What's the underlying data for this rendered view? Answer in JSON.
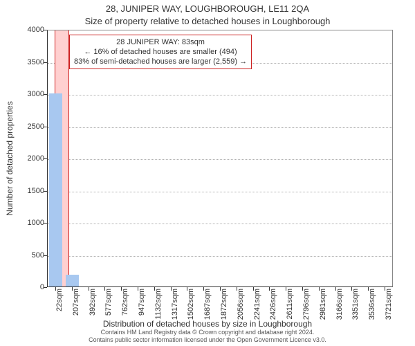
{
  "chart": {
    "type": "histogram",
    "title_line1": "28, JUNIPER WAY, LOUGHBOROUGH, LE11 2QA",
    "title_line2": "Size of property relative to detached houses in Loughborough",
    "title_fontsize": 13,
    "y_axis": {
      "label": "Number of detached properties",
      "ticks": [
        0,
        500,
        1000,
        1500,
        2000,
        2500,
        3000,
        3500,
        4000
      ],
      "lim": [
        0,
        4000
      ],
      "label_fontsize": 12,
      "tick_fontsize": 11
    },
    "x_axis": {
      "label": "Distribution of detached houses by size in Loughborough",
      "tick_labels": [
        "22sqm",
        "207sqm",
        "392sqm",
        "577sqm",
        "762sqm",
        "947sqm",
        "1132sqm",
        "1317sqm",
        "1502sqm",
        "1687sqm",
        "1872sqm",
        "2056sqm",
        "2241sqm",
        "2426sqm",
        "2611sqm",
        "2796sqm",
        "2981sqm",
        "3166sqm",
        "3351sqm",
        "3536sqm",
        "3721sqm"
      ],
      "label_fontsize": 12,
      "tick_fontsize": 11
    },
    "highlight": {
      "center_index": 0.33,
      "color": "#ffd0d0",
      "border_color": "#cc2020"
    },
    "bars": {
      "values": [
        3000,
        180,
        0,
        0,
        0,
        0,
        0,
        0,
        0,
        0,
        0,
        0,
        0,
        0,
        0,
        0,
        0,
        0,
        0,
        0,
        0
      ],
      "fill_color": "#a8c8f0",
      "width_frac": 0.8
    },
    "grid": {
      "color": "#b0b0b0",
      "style": "dotted"
    },
    "background_color": "#ffffff",
    "plot_border_color": "#888888",
    "annotation": {
      "lines": [
        "28 JUNIPER WAY: 83sqm",
        "← 16% of detached houses are smaller (494)",
        "83% of semi-detached houses are larger (2,559) →"
      ],
      "border_color": "#cc2020",
      "fontsize": 11,
      "bg_color": "#ffffff"
    }
  },
  "footer": {
    "line1": "Contains HM Land Registry data © Crown copyright and database right 2024.",
    "line2": "Contains public sector information licensed under the Open Government Licence v3.0.",
    "fontsize": 9,
    "color": "#555555"
  }
}
